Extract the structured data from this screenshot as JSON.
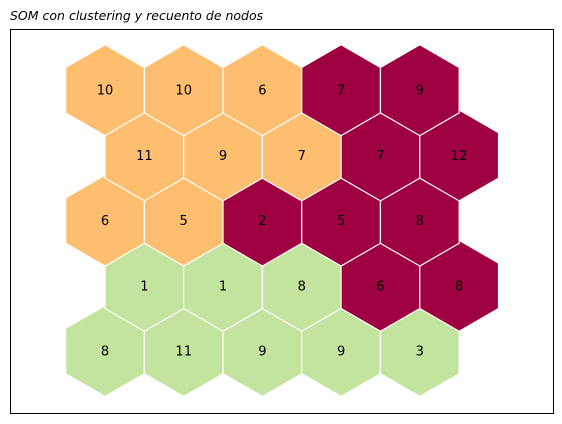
{
  "chart_data": {
    "type": "heatmap",
    "title": "SOM con clustering y recuento de nodos",
    "grid": false,
    "colors": {
      "1": "#c2e49f",
      "2": "#fdbe70",
      "3": "#9e0042"
    },
    "rows": [
      {
        "cells": [
          {
            "count": 8,
            "cluster": 1
          },
          {
            "count": 11,
            "cluster": 1
          },
          {
            "count": 9,
            "cluster": 1
          },
          {
            "count": 9,
            "cluster": 1
          },
          {
            "count": 3,
            "cluster": 1
          }
        ]
      },
      {
        "cells": [
          {
            "count": 1,
            "cluster": 1
          },
          {
            "count": 1,
            "cluster": 1
          },
          {
            "count": 8,
            "cluster": 1
          },
          {
            "count": 6,
            "cluster": 3
          },
          {
            "count": 8,
            "cluster": 3
          }
        ]
      },
      {
        "cells": [
          {
            "count": 6,
            "cluster": 2
          },
          {
            "count": 5,
            "cluster": 2
          },
          {
            "count": 2,
            "cluster": 3
          },
          {
            "count": 5,
            "cluster": 3
          },
          {
            "count": 8,
            "cluster": 3
          }
        ]
      },
      {
        "cells": [
          {
            "count": 11,
            "cluster": 2
          },
          {
            "count": 9,
            "cluster": 2
          },
          {
            "count": 7,
            "cluster": 2
          },
          {
            "count": 7,
            "cluster": 3
          },
          {
            "count": 12,
            "cluster": 3
          }
        ]
      },
      {
        "cells": [
          {
            "count": 10,
            "cluster": 2
          },
          {
            "count": 10,
            "cluster": 2
          },
          {
            "count": 6,
            "cluster": 2
          },
          {
            "count": 7,
            "cluster": 3
          },
          {
            "count": 9,
            "cluster": 3
          }
        ]
      }
    ]
  }
}
